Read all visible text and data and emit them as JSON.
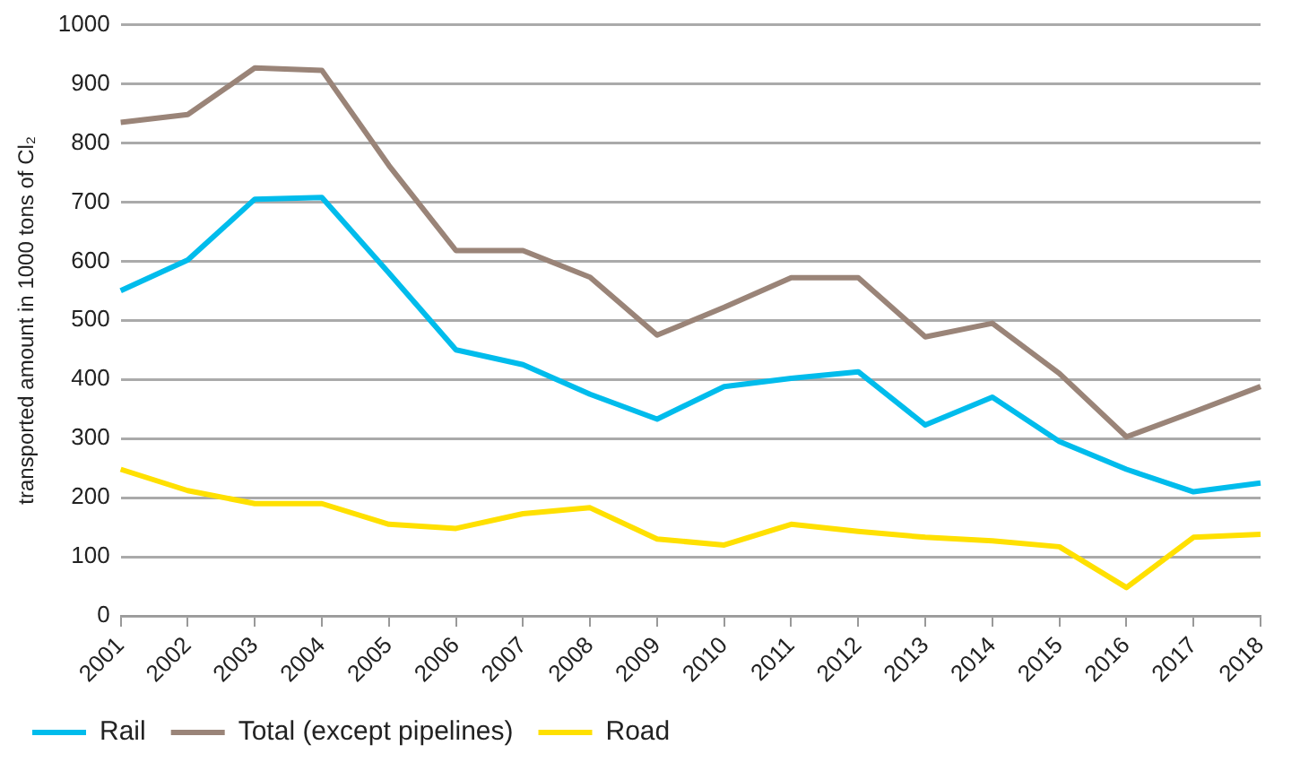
{
  "chart_data": {
    "type": "line",
    "ylabel": "transported amount in 1000 tons of Cl₂",
    "categories": [
      "2001",
      "2002",
      "2003",
      "2004",
      "2005",
      "2006",
      "2007",
      "2008",
      "2009",
      "2010",
      "2011",
      "2012",
      "2013",
      "2014",
      "2015",
      "2016",
      "2017",
      "2018"
    ],
    "series": [
      {
        "name": "Rail",
        "color": "#00bcec",
        "values": [
          550,
          602,
          705,
          708,
          580,
          450,
          425,
          375,
          333,
          388,
          402,
          413,
          323,
          370,
          295,
          248,
          210,
          225
        ]
      },
      {
        "name": "Total (except pipelines)",
        "color": "#9a8478",
        "values": [
          835,
          848,
          927,
          923,
          762,
          618,
          618,
          573,
          475,
          522,
          572,
          572,
          472,
          495,
          410,
          303,
          345,
          388
        ]
      },
      {
        "name": "Road",
        "color": "#ffe000",
        "values": [
          248,
          212,
          190,
          190,
          155,
          148,
          173,
          183,
          130,
          120,
          155,
          143,
          133,
          127,
          117,
          48,
          133,
          138
        ]
      }
    ],
    "ylim": [
      0,
      1000
    ],
    "yticks": [
      0,
      100,
      200,
      300,
      400,
      500,
      600,
      700,
      800,
      900,
      1000
    ],
    "grid": "y",
    "legend": "bottom left",
    "marker": "none",
    "line_style": "solid"
  }
}
